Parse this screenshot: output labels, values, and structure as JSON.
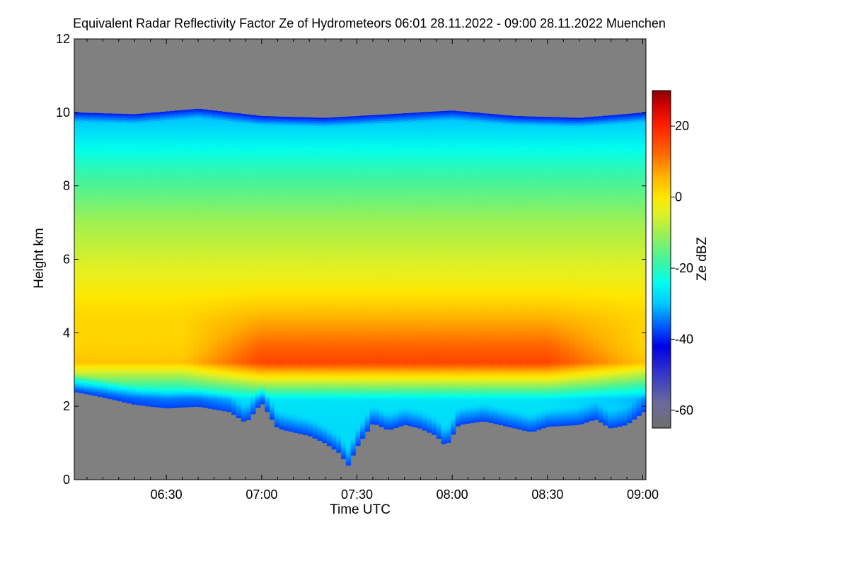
{
  "chart_data": {
    "type": "heatmap",
    "title": "Equivalent Radar Reflectivity Factor Ze of Hydrometeors   06:01 28.11.2022 - 09:00 28.11.2022 Muenchen",
    "xlabel": "Time UTC",
    "ylabel": "Height km",
    "colorbar_label": "Ze dBZ",
    "x_range": [
      "06:01",
      "09:00"
    ],
    "xlim_minutes_utc": [
      361,
      541
    ],
    "x_ticks": [
      {
        "label": "06:30",
        "value": 390
      },
      {
        "label": "07:00",
        "value": 420
      },
      {
        "label": "07:30",
        "value": 450
      },
      {
        "label": "08:00",
        "value": 480
      },
      {
        "label": "08:30",
        "value": 510
      },
      {
        "label": "09:00",
        "value": 540
      }
    ],
    "ylim": [
      0,
      12
    ],
    "y_ticks": [
      0,
      2,
      4,
      6,
      8,
      10,
      12
    ],
    "colorbar_range": [
      -65,
      30
    ],
    "colorbar_ticks": [
      20,
      0,
      -20,
      -40,
      -60
    ],
    "no_signal_color": "#808080",
    "colormap": [
      {
        "value": -65,
        "color": "#6e6e6e"
      },
      {
        "value": -58,
        "color": "#6a6a9c"
      },
      {
        "value": -50,
        "color": "#3838c8"
      },
      {
        "value": -42,
        "color": "#0000e6"
      },
      {
        "value": -36,
        "color": "#0060ff"
      },
      {
        "value": -30,
        "color": "#00c8ff"
      },
      {
        "value": -24,
        "color": "#00ffee"
      },
      {
        "value": -18,
        "color": "#40f4a0"
      },
      {
        "value": -10,
        "color": "#a0f050"
      },
      {
        "value": -4,
        "color": "#e6f020"
      },
      {
        "value": 0,
        "color": "#ffe600"
      },
      {
        "value": 6,
        "color": "#ffb000"
      },
      {
        "value": 12,
        "color": "#ff6a00"
      },
      {
        "value": 20,
        "color": "#ff2000"
      },
      {
        "value": 26,
        "color": "#d00000"
      },
      {
        "value": 30,
        "color": "#880000"
      }
    ],
    "cloud_top_km": [
      {
        "t": 361,
        "h": 10.0
      },
      {
        "t": 380,
        "h": 9.95
      },
      {
        "t": 400,
        "h": 10.1
      },
      {
        "t": 420,
        "h": 9.9
      },
      {
        "t": 440,
        "h": 9.85
      },
      {
        "t": 460,
        "h": 9.95
      },
      {
        "t": 480,
        "h": 10.05
      },
      {
        "t": 500,
        "h": 9.9
      },
      {
        "t": 520,
        "h": 9.85
      },
      {
        "t": 541,
        "h": 10.0
      }
    ],
    "cloud_base_km": [
      {
        "t": 361,
        "h": 2.4
      },
      {
        "t": 370,
        "h": 2.25
      },
      {
        "t": 380,
        "h": 2.05
      },
      {
        "t": 390,
        "h": 1.95
      },
      {
        "t": 400,
        "h": 2.0
      },
      {
        "t": 410,
        "h": 1.85
      },
      {
        "t": 415,
        "h": 1.55
      },
      {
        "t": 420,
        "h": 2.1
      },
      {
        "t": 425,
        "h": 1.4
      },
      {
        "t": 430,
        "h": 1.3
      },
      {
        "t": 435,
        "h": 1.2
      },
      {
        "t": 440,
        "h": 1.0
      },
      {
        "t": 445,
        "h": 0.7
      },
      {
        "t": 447,
        "h": 0.35
      },
      {
        "t": 450,
        "h": 0.9
      },
      {
        "t": 455,
        "h": 1.55
      },
      {
        "t": 460,
        "h": 1.35
      },
      {
        "t": 465,
        "h": 1.5
      },
      {
        "t": 470,
        "h": 1.4
      },
      {
        "t": 475,
        "h": 1.2
      },
      {
        "t": 478,
        "h": 0.9
      },
      {
        "t": 482,
        "h": 1.5
      },
      {
        "t": 490,
        "h": 1.6
      },
      {
        "t": 500,
        "h": 1.4
      },
      {
        "t": 505,
        "h": 1.3
      },
      {
        "t": 510,
        "h": 1.45
      },
      {
        "t": 520,
        "h": 1.5
      },
      {
        "t": 525,
        "h": 1.65
      },
      {
        "t": 530,
        "h": 1.4
      },
      {
        "t": 535,
        "h": 1.5
      },
      {
        "t": 541,
        "h": 1.9
      }
    ],
    "reflectivity_profiles_dbz": [
      {
        "height_km": 2.2,
        "dbz": -28
      },
      {
        "height_km": 3.2,
        "dbz": 12
      },
      {
        "height_km": 4.3,
        "dbz": 6
      },
      {
        "height_km": 5.5,
        "dbz": -3
      },
      {
        "height_km": 7.0,
        "dbz": -10
      },
      {
        "height_km": 8.5,
        "dbz": -20
      },
      {
        "height_km": 9.8,
        "dbz": -30
      }
    ],
    "reflectivity_peak": {
      "time_range": [
        "07:00",
        "08:30"
      ],
      "height_km": 3.2,
      "dbz": 16
    }
  }
}
